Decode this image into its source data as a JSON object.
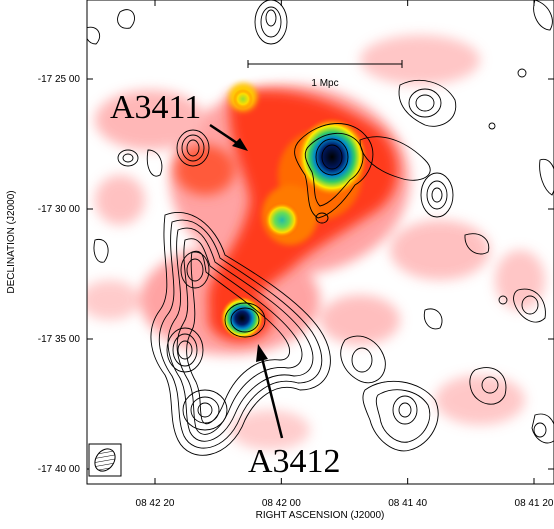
{
  "x_axis": {
    "title": "RIGHT ASCENSION  (J2000)",
    "ticks": [
      {
        "label": "08 42 20",
        "ra_sec": 140
      },
      {
        "label": "08 42 00",
        "ra_sec": 120
      },
      {
        "label": "08 41 40",
        "ra_sec": 100
      },
      {
        "label": "08 41 20",
        "ra_sec": 80
      }
    ]
  },
  "y_axis": {
    "title": "DECLINATION  (J2000)",
    "ticks": [
      {
        "label": "-17 25 00",
        "dec_arcmin": -25
      },
      {
        "label": "-17 30 00",
        "dec_arcmin": -30
      },
      {
        "label": "-17 35 00",
        "dec_arcmin": -35
      },
      {
        "label": "-17 40 00",
        "dec_arcmin": -40
      }
    ]
  },
  "annotations": {
    "cluster_a": "A3411",
    "cluster_b": "A3412"
  },
  "scale_bar": {
    "label": "1 Mpc"
  },
  "colors": {
    "emission_low": "#ff8080",
    "emission_mid": "#ff2a00",
    "emission_high": "#ffdd00",
    "peak_green": "#33cc33",
    "peak_core": "#001a66",
    "contour": "#000000"
  },
  "beam": {
    "symbol": "hatched-ellipse"
  }
}
